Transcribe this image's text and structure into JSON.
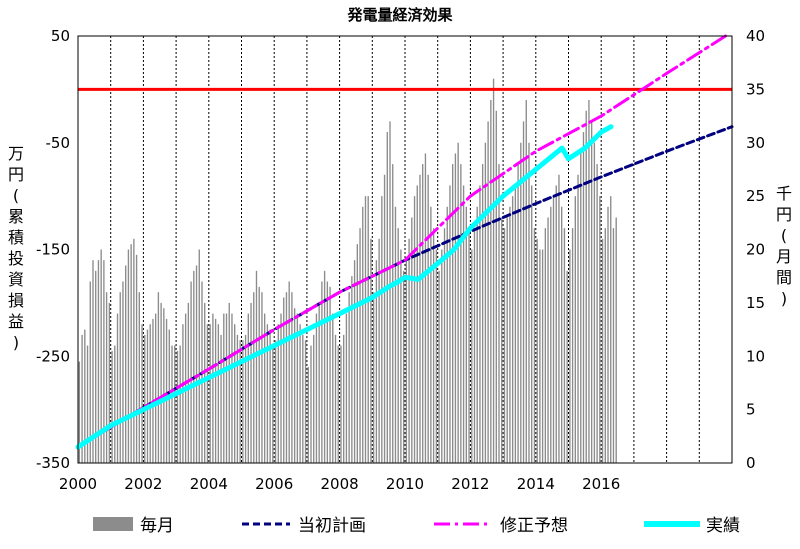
{
  "chart_data": {
    "type": "bar+line",
    "title": "発電量経済効果",
    "x_range": [
      2000,
      2020
    ],
    "x_ticks": [
      "2000",
      "2002",
      "2004",
      "2006",
      "2008",
      "2010",
      "2012",
      "2014",
      "2016"
    ],
    "left_axis": {
      "label": [
        "万",
        "円",
        "(",
        "累",
        "積",
        "投",
        "資",
        "損",
        "益",
        ")"
      ],
      "range": [
        -350,
        50
      ],
      "ticks": [
        "50",
        "-50",
        "-150",
        "-250",
        "-350"
      ]
    },
    "right_axis": {
      "label": [
        "千",
        "円",
        "(",
        "月",
        "間",
        ")"
      ],
      "range": [
        0,
        40
      ],
      "ticks": [
        "40",
        "35",
        "30",
        "25",
        "20",
        "15",
        "10",
        "5",
        "0"
      ]
    },
    "grid": "vertical",
    "reference_line": {
      "axis": "right",
      "value": 35,
      "color": "#ff0000"
    },
    "bars": {
      "name": "毎月",
      "axis": "right",
      "color": "#8c8c8c",
      "start_year": 2000,
      "months_per_year": 12,
      "values": [
        9.5,
        12,
        12.5,
        11,
        17,
        19,
        18,
        19,
        20,
        19,
        16,
        15,
        10.5,
        11,
        14,
        16,
        17,
        18.5,
        20,
        20.5,
        21,
        19.5,
        16,
        13,
        12,
        12.5,
        13,
        13.5,
        14,
        16,
        15,
        14.5,
        13.5,
        12.5,
        11,
        11,
        10.5,
        11,
        13,
        14,
        15,
        17,
        18,
        18.5,
        20,
        17,
        15,
        13,
        13,
        14,
        13.5,
        13,
        12,
        14,
        14,
        15,
        14,
        13,
        12,
        11.5,
        11.5,
        12,
        14,
        15,
        16,
        18,
        16.5,
        16,
        14,
        13,
        12.5,
        11,
        11.5,
        13,
        14,
        15.5,
        16,
        17,
        16,
        14.5,
        14,
        13,
        12,
        11.5,
        9,
        11,
        12,
        14,
        15,
        17,
        18,
        17,
        16.5,
        14,
        12,
        11,
        11,
        12,
        14,
        16,
        17.5,
        19,
        20.5,
        22,
        24,
        25,
        25,
        21,
        16,
        19,
        21,
        25,
        27,
        31,
        32,
        28,
        24,
        22,
        20,
        18,
        19,
        21,
        23,
        25,
        26,
        27,
        28,
        29,
        27,
        24,
        22,
        20,
        18,
        20,
        22,
        24,
        26,
        28,
        29,
        30,
        28,
        26,
        24,
        22,
        20,
        22,
        24,
        26,
        28,
        30,
        32,
        34,
        36,
        33,
        28,
        23,
        22,
        23,
        24,
        25,
        26,
        28,
        30,
        32,
        34,
        30,
        26,
        22,
        21,
        20,
        20,
        22,
        23,
        24,
        25,
        26,
        27,
        24,
        22,
        18,
        20,
        22,
        25,
        27,
        29,
        31,
        33,
        34,
        32,
        30,
        28,
        25,
        21,
        22,
        24,
        25,
        22,
        23
      ]
    },
    "series": [
      {
        "name": "当初計画",
        "axis": "left",
        "color": "#000080",
        "style": "short-dash",
        "x": [
          2000,
          2002,
          2004,
          2006,
          2008,
          2010,
          2012,
          2014,
          2016,
          2018,
          2020
        ],
        "y": [
          -335,
          -298,
          -262,
          -225,
          -190,
          -160,
          -133,
          -107,
          -82,
          -58,
          -35
        ]
      },
      {
        "name": "修正予想",
        "axis": "left",
        "color": "#ff00ff",
        "style": "dash-dot",
        "x": [
          2000,
          2002,
          2004,
          2006,
          2008,
          2010,
          2012,
          2014,
          2016,
          2018,
          2019.8
        ],
        "y": [
          -335,
          -298,
          -262,
          -225,
          -190,
          -160,
          -100,
          -58,
          -25,
          15,
          50
        ]
      },
      {
        "name": "実績",
        "axis": "left",
        "color": "#00ffff",
        "style": "solid",
        "x": [
          2000,
          2001,
          2002,
          2003,
          2004,
          2005,
          2006,
          2007,
          2008,
          2009,
          2009.5,
          2009.8,
          2010,
          2010.4,
          2011,
          2011.5,
          2012,
          2013,
          2014,
          2014.8,
          2015,
          2015.5,
          2016,
          2016.3
        ],
        "y": [
          -335,
          -315,
          -300,
          -285,
          -270,
          -255,
          -240,
          -225,
          -210,
          -195,
          -185,
          -180,
          -176,
          -178,
          -163,
          -150,
          -130,
          -100,
          -75,
          -55,
          -65,
          -55,
          -40,
          -35
        ]
      }
    ],
    "legend": {
      "position": "bottom",
      "items": [
        {
          "name": "毎月",
          "kind": "bar",
          "color": "#8c8c8c"
        },
        {
          "name": "当初計画",
          "kind": "short-dash",
          "color": "#000080"
        },
        {
          "name": "修正予想",
          "kind": "dash-dot",
          "color": "#ff00ff"
        },
        {
          "name": "実績",
          "kind": "solid",
          "color": "#00ffff"
        }
      ]
    }
  }
}
